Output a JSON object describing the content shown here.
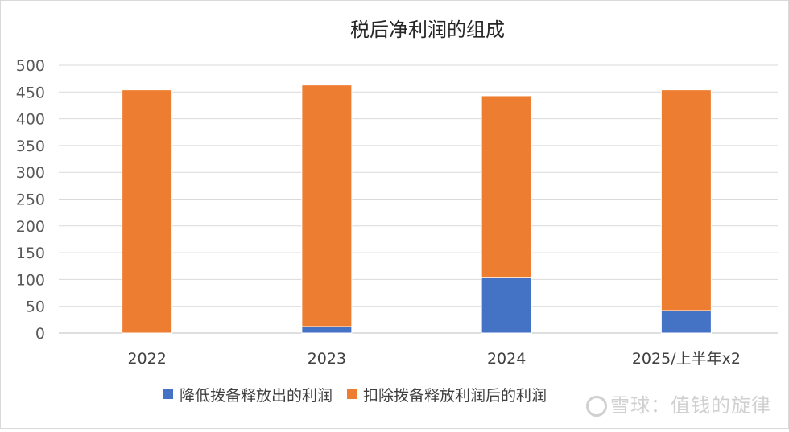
{
  "chart_data": {
    "type": "bar",
    "stacked": true,
    "title": "税后净利润的组成",
    "categories": [
      "2022",
      "2023",
      "2024",
      "2025/上半年x2"
    ],
    "series": [
      {
        "name": "降低拨备释放出的利润",
        "color": "#4472c4",
        "values": [
          0,
          12,
          104,
          42
        ]
      },
      {
        "name": "扣除拨备释放利润后的利润",
        "color": "#ed7d31",
        "values": [
          454,
          451,
          339,
          412
        ]
      }
    ],
    "ylim": [
      0,
      500
    ],
    "yticks": [
      0,
      50,
      100,
      150,
      200,
      250,
      300,
      350,
      400,
      450,
      500
    ],
    "grid": true,
    "legend_position": "bottom"
  },
  "watermark": {
    "text": "雪球：值钱的旋律"
  }
}
